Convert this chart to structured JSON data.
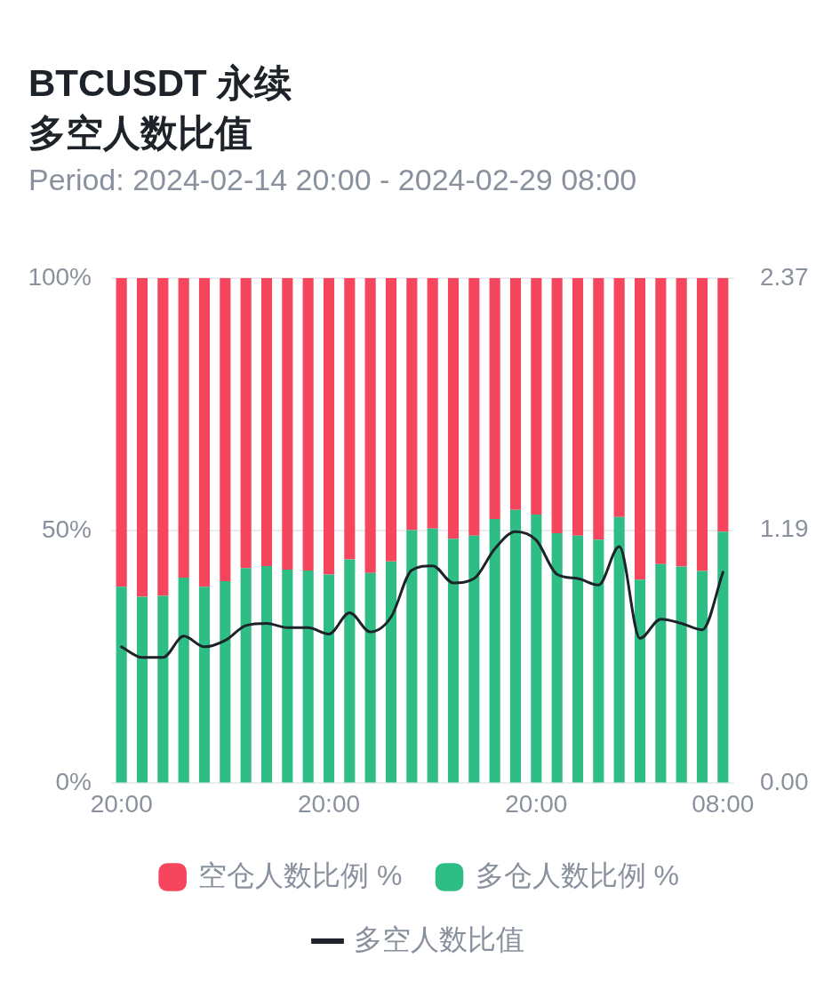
{
  "chart_data": {
    "type": "bar",
    "title": "BTCUSDT 永续多空人数比值",
    "subtitle": "Period: 2024-02-14 20:00 - 2024-02-29 08:00",
    "categories": [
      "20:00",
      null,
      null,
      null,
      null,
      null,
      null,
      null,
      null,
      null,
      "20:00",
      null,
      null,
      null,
      null,
      null,
      null,
      null,
      null,
      null,
      "20:00",
      null,
      null,
      null,
      null,
      null,
      null,
      null,
      null,
      "08:00"
    ],
    "series": [
      {
        "name": "多空人数比值",
        "type": "line",
        "axis": "y2",
        "color": "#1e2329",
        "line_style": "solid",
        "values": [
          0.64,
          0.59,
          0.59,
          0.69,
          0.64,
          0.67,
          0.74,
          0.75,
          0.73,
          0.73,
          0.7,
          0.8,
          0.71,
          0.78,
          1.0,
          1.02,
          0.94,
          0.96,
          1.1,
          1.18,
          1.14,
          0.98,
          0.96,
          0.93,
          1.11,
          0.68,
          0.77,
          0.75,
          0.72,
          0.99
        ]
      },
      {
        "name": "多仓人数比例 %",
        "color": "#2ebd85",
        "values": [
          38.9,
          36.9,
          37.1,
          40.7,
          38.9,
          40.0,
          42.6,
          43.0,
          42.3,
          42.1,
          41.3,
          44.3,
          41.6,
          43.9,
          50.1,
          50.4,
          48.4,
          49.0,
          52.3,
          54.1,
          53.2,
          49.5,
          49.0,
          48.2,
          52.7,
          40.3,
          43.4,
          42.9,
          42.0,
          49.8
        ]
      },
      {
        "name": "空仓人数比例 %",
        "color": "#f6465d",
        "values": [
          61.1,
          63.1,
          62.9,
          59.3,
          61.1,
          60.0,
          57.4,
          57.0,
          57.7,
          57.9,
          58.7,
          55.7,
          58.4,
          56.1,
          49.9,
          49.6,
          51.6,
          51.0,
          47.7,
          45.9,
          46.8,
          50.5,
          51.0,
          51.8,
          47.3,
          59.7,
          56.6,
          57.1,
          58.0,
          50.2
        ]
      }
    ],
    "stacked": true,
    "ylim": [
      0,
      100
    ],
    "yticks": [
      {
        "value": 0,
        "label": "0%"
      },
      {
        "value": 50,
        "label": "50%"
      },
      {
        "value": 100,
        "label": "100%"
      }
    ],
    "y2lim": [
      0,
      2.37
    ],
    "y2ticks": [
      {
        "value": 0,
        "label": "0.00"
      },
      1.19,
      2.37
    ],
    "grid": "y",
    "legend": "bottom"
  }
}
